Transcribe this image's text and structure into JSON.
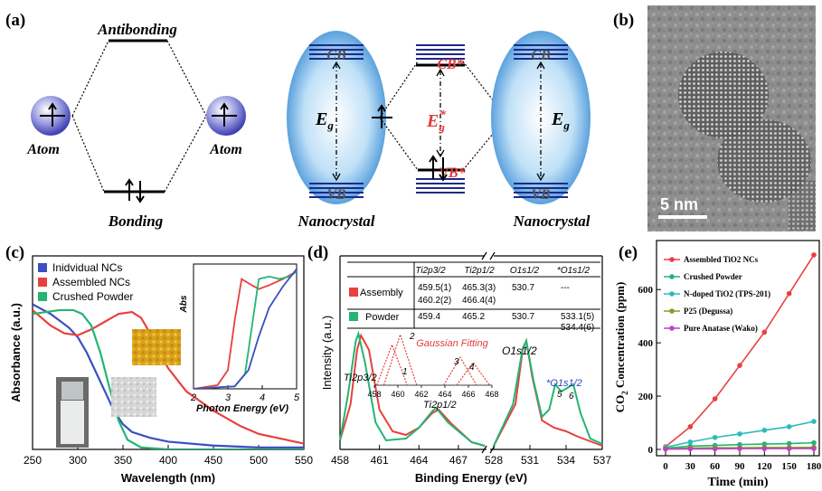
{
  "panels": {
    "a": {
      "label": "(a)",
      "antibonding": "Antibonding",
      "bonding": "Bonding",
      "atom": "Atom",
      "cb": "CB",
      "vb": "VB",
      "eg": "E",
      "eg_sub": "g",
      "cb_star": "CB*",
      "vb_star": "VB*",
      "eg_star": "E",
      "eg_star_sub": "g",
      "eg_star_sup": "*",
      "nanocrystal": "Nanocrystal"
    },
    "b": {
      "label": "(b)",
      "scale_bar": "5 nm"
    },
    "c": {
      "label": "(c)",
      "ylabel": "Absorbance (a.u.)",
      "xlabel": "Wavelength (nm)",
      "inset_ylabel": "Abs",
      "inset_xlabel": "Photon Energy (eV)"
    },
    "d": {
      "label": "(d)",
      "ylabel": "Intensity (a.u.)",
      "xlabel": "Binding Energy (eV)",
      "gaussian": "Gaussian Fitting",
      "inset_ticks": [
        "458",
        "460",
        "462",
        "464",
        "466",
        "468"
      ],
      "peak_numbers": [
        "1",
        "2",
        "3",
        "4"
      ],
      "peaks": {
        "ti2p32": "Ti2p3/2",
        "ti2p12": "Ti2p1/2",
        "o1s12": "O1s1/2",
        "o1s12_star": "*O1s1/2",
        "p5": "5",
        "p6": "6"
      },
      "table": {
        "headers": [
          "Ti2p3/2",
          "Ti2p1/2",
          "O1s1/2",
          "*O1s1/2"
        ],
        "rows": [
          {
            "name": "Assembly",
            "color": "#e8403e",
            "cells": [
              [
                "459.5(1)",
                "460.2(2)"
              ],
              [
                "465.3(3)",
                "466.4(4)"
              ],
              [
                "530.7"
              ],
              [
                "---"
              ]
            ]
          },
          {
            "name": "Powder",
            "color": "#22b573",
            "cells": [
              [
                "459.4"
              ],
              [
                "465.2"
              ],
              [
                "530.7"
              ],
              [
                "533.1(5)",
                "534.4(6)"
              ]
            ]
          }
        ]
      }
    },
    "e": {
      "label": "(e)",
      "ylabel_main": "CO",
      "ylabel_sub": "2",
      "ylabel_rest": " Concentration (ppm)",
      "xlabel": "Time (min)"
    }
  },
  "chart_data": [
    {
      "panel": "c",
      "type": "line",
      "xlabel": "Wavelength (nm)",
      "ylabel": "Absorbance (a.u.)",
      "xlim": [
        250,
        550
      ],
      "ylim": [
        0,
        1
      ],
      "x_ticks": [
        250,
        300,
        350,
        400,
        450,
        500,
        550
      ],
      "legend_position": "top-left",
      "series": [
        {
          "name": "Inidvidual NCs",
          "color": "#3a4fbf",
          "points": [
            [
              250,
              0.75
            ],
            [
              270,
              0.7
            ],
            [
              290,
              0.63
            ],
            [
              300,
              0.58
            ],
            [
              310,
              0.5
            ],
            [
              320,
              0.4
            ],
            [
              330,
              0.3
            ],
            [
              340,
              0.2
            ],
            [
              350,
              0.13
            ],
            [
              360,
              0.09
            ],
            [
              380,
              0.06
            ],
            [
              400,
              0.04
            ],
            [
              450,
              0.02
            ],
            [
              500,
              0.01
            ],
            [
              550,
              0.01
            ]
          ]
        },
        {
          "name": "Assembled NCs",
          "color": "#e8403e",
          "points": [
            [
              250,
              0.72
            ],
            [
              270,
              0.64
            ],
            [
              285,
              0.6
            ],
            [
              300,
              0.59
            ],
            [
              315,
              0.62
            ],
            [
              330,
              0.66
            ],
            [
              345,
              0.7
            ],
            [
              360,
              0.71
            ],
            [
              370,
              0.68
            ],
            [
              380,
              0.6
            ],
            [
              390,
              0.5
            ],
            [
              400,
              0.42
            ],
            [
              420,
              0.3
            ],
            [
              450,
              0.2
            ],
            [
              480,
              0.12
            ],
            [
              500,
              0.08
            ],
            [
              550,
              0.03
            ]
          ]
        },
        {
          "name": "Crushed Powder",
          "color": "#22b573",
          "points": [
            [
              250,
              0.7
            ],
            [
              265,
              0.71
            ],
            [
              280,
              0.72
            ],
            [
              295,
              0.72
            ],
            [
              305,
              0.7
            ],
            [
              315,
              0.64
            ],
            [
              325,
              0.5
            ],
            [
              335,
              0.32
            ],
            [
              345,
              0.15
            ],
            [
              355,
              0.05
            ],
            [
              370,
              0.01
            ],
            [
              400,
              0.0
            ],
            [
              550,
              0.0
            ]
          ]
        }
      ]
    },
    {
      "panel": "c-inset",
      "type": "line",
      "xlabel": "Photon Energy (eV)",
      "ylabel": "Abs",
      "xlim": [
        2,
        5
      ],
      "x_ticks": [
        2,
        3,
        4,
        5
      ],
      "series": [
        {
          "color": "#e8403e",
          "points": [
            [
              2.0,
              0.0
            ],
            [
              2.7,
              0.03
            ],
            [
              3.0,
              0.15
            ],
            [
              3.2,
              0.55
            ],
            [
              3.4,
              0.88
            ],
            [
              3.7,
              0.83
            ],
            [
              3.9,
              0.8
            ],
            [
              4.2,
              0.83
            ],
            [
              4.6,
              0.88
            ],
            [
              5.0,
              0.94
            ]
          ]
        },
        {
          "color": "#22b573",
          "points": [
            [
              2.0,
              0.0
            ],
            [
              3.2,
              0.02
            ],
            [
              3.5,
              0.12
            ],
            [
              3.7,
              0.5
            ],
            [
              3.9,
              0.88
            ],
            [
              4.2,
              0.9
            ],
            [
              4.5,
              0.88
            ],
            [
              4.8,
              0.9
            ],
            [
              5.0,
              0.94
            ]
          ]
        },
        {
          "color": "#3a4fbf",
          "points": [
            [
              2.0,
              0.0
            ],
            [
              3.2,
              0.02
            ],
            [
              3.6,
              0.15
            ],
            [
              3.9,
              0.42
            ],
            [
              4.2,
              0.65
            ],
            [
              4.6,
              0.82
            ],
            [
              5.0,
              0.96
            ]
          ]
        }
      ]
    },
    {
      "panel": "d",
      "type": "line",
      "xlabel": "Binding Energy (eV)",
      "ylabel": "Intensity (a.u.)",
      "x_ticks": [
        458,
        461,
        464,
        467,
        528,
        531,
        534,
        537
      ],
      "x_break_between": [
        469,
        528
      ],
      "series": [
        {
          "name": "Assembly",
          "color": "#e8403e",
          "points": [
            [
              458,
              0.05
            ],
            [
              458.8,
              0.25
            ],
            [
              459.3,
              0.55
            ],
            [
              459.6,
              0.63
            ],
            [
              460.2,
              0.55
            ],
            [
              461,
              0.22
            ],
            [
              462,
              0.1
            ],
            [
              463,
              0.08
            ],
            [
              464,
              0.12
            ],
            [
              465,
              0.2
            ],
            [
              465.5,
              0.22
            ],
            [
              466.5,
              0.14
            ],
            [
              468,
              0.04
            ],
            [
              469,
              0.02
            ],
            [
              528,
              0.02
            ],
            [
              529.8,
              0.25
            ],
            [
              530.4,
              0.55
            ],
            [
              530.7,
              0.6
            ],
            [
              531.2,
              0.4
            ],
            [
              532,
              0.16
            ],
            [
              533,
              0.12
            ],
            [
              534,
              0.1
            ],
            [
              535,
              0.07
            ],
            [
              537,
              0.02
            ]
          ]
        },
        {
          "name": "Powder",
          "color": "#22b573",
          "points": [
            [
              458,
              0.05
            ],
            [
              458.6,
              0.3
            ],
            [
              459.2,
              0.6
            ],
            [
              459.4,
              0.64
            ],
            [
              459.9,
              0.48
            ],
            [
              460.7,
              0.15
            ],
            [
              461.5,
              0.05
            ],
            [
              463,
              0.06
            ],
            [
              464,
              0.12
            ],
            [
              465,
              0.21
            ],
            [
              465.3,
              0.23
            ],
            [
              466.2,
              0.15
            ],
            [
              468,
              0.04
            ],
            [
              469,
              0.02
            ],
            [
              528,
              0.02
            ],
            [
              529.6,
              0.25
            ],
            [
              530.4,
              0.56
            ],
            [
              530.7,
              0.6
            ],
            [
              531.3,
              0.38
            ],
            [
              532.0,
              0.18
            ],
            [
              532.6,
              0.22
            ],
            [
              533.1,
              0.36
            ],
            [
              533.6,
              0.32
            ],
            [
              534.1,
              0.34
            ],
            [
              534.6,
              0.36
            ],
            [
              535.2,
              0.2
            ],
            [
              536,
              0.06
            ],
            [
              537,
              0.03
            ]
          ]
        }
      ]
    },
    {
      "panel": "d-inset",
      "type": "line",
      "xlim": [
        458,
        468
      ],
      "series": [
        {
          "color": "#e8403e",
          "points": [
            [
              458.2,
              0
            ],
            [
              459.5,
              0.8
            ],
            [
              460.8,
              0
            ]
          ]
        },
        {
          "color": "#e8403e",
          "points": [
            [
              458.8,
              0
            ],
            [
              460.2,
              1.0
            ],
            [
              461.6,
              0
            ]
          ]
        },
        {
          "color": "#e8403e",
          "points": [
            [
              463.9,
              0
            ],
            [
              465.3,
              0.55
            ],
            [
              466.7,
              0
            ]
          ]
        },
        {
          "color": "#e8403e",
          "points": [
            [
              465.0,
              0
            ],
            [
              466.4,
              0.45
            ],
            [
              467.8,
              0
            ]
          ]
        }
      ]
    },
    {
      "panel": "e",
      "type": "line",
      "xlabel": "Time (min)",
      "ylabel": "CO2 Concentration (ppm)",
      "xlim": [
        0,
        180
      ],
      "ylim": [
        0,
        750
      ],
      "x_ticks": [
        0,
        30,
        60,
        90,
        120,
        150,
        180
      ],
      "y_ticks": [
        0,
        200,
        400,
        600
      ],
      "legend_position": "top-left",
      "series": [
        {
          "name": "Assembled TiO2 NCs",
          "color": "#e8403e",
          "x": [
            0,
            30,
            60,
            90,
            120,
            150,
            180
          ],
          "values": [
            10,
            85,
            190,
            315,
            440,
            585,
            730
          ]
        },
        {
          "name": "Crushed Powder",
          "color": "#22b573",
          "x": [
            0,
            30,
            60,
            90,
            120,
            150,
            180
          ],
          "values": [
            5,
            12,
            15,
            18,
            20,
            22,
            25
          ]
        },
        {
          "name": "N-doped TiO2 (TPS-201)",
          "color": "#2bbbbb",
          "x": [
            0,
            30,
            60,
            90,
            120,
            150,
            180
          ],
          "values": [
            8,
            28,
            45,
            58,
            72,
            85,
            105
          ]
        },
        {
          "name": "P25 (Degussa)",
          "color": "#8a9a2a",
          "x": [
            0,
            30,
            60,
            90,
            120,
            150,
            180
          ],
          "values": [
            3,
            5,
            6,
            6,
            7,
            7,
            8
          ]
        },
        {
          "name": "Pure Anatase (Wako)",
          "color": "#c040c0",
          "x": [
            0,
            30,
            60,
            90,
            120,
            150,
            180
          ],
          "values": [
            1,
            2,
            2,
            3,
            3,
            3,
            3
          ]
        }
      ]
    }
  ]
}
